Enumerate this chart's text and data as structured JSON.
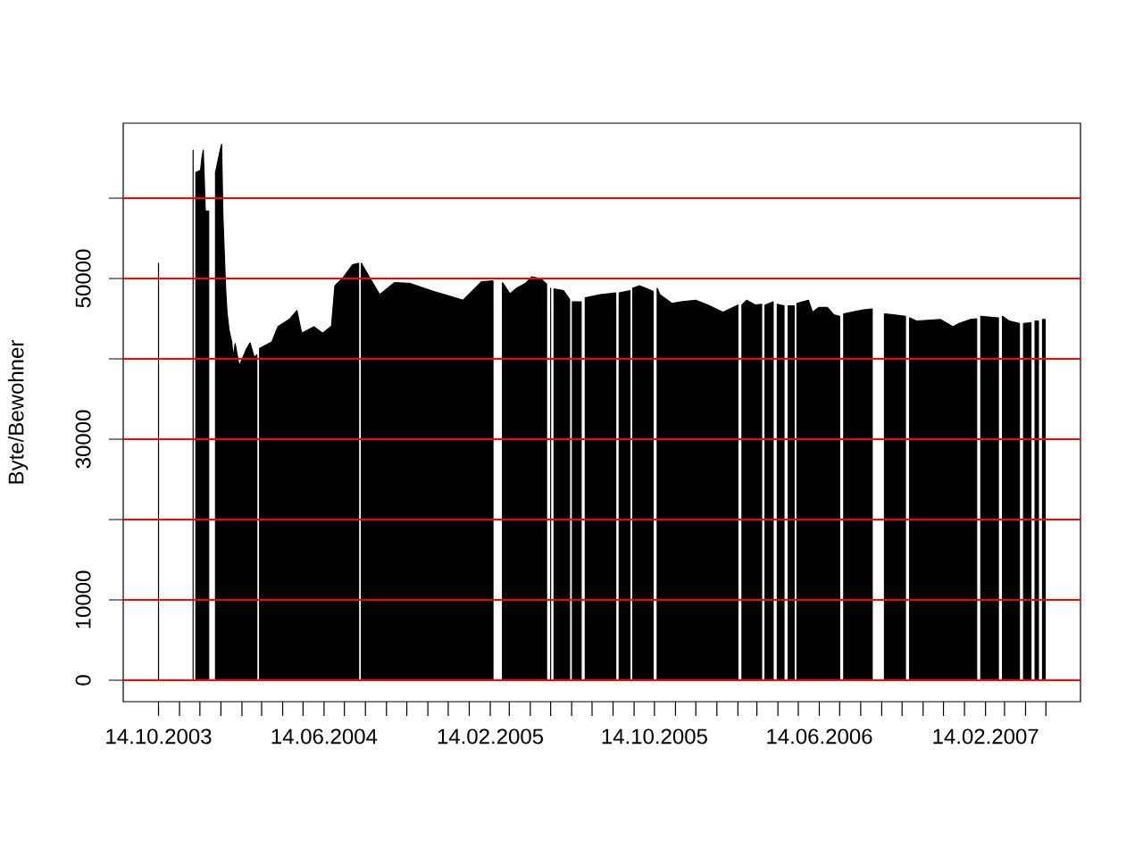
{
  "chart_data": {
    "type": "area",
    "ylabel": "Byte/Bewohner",
    "color": "#000000",
    "x": [
      "2003-10-14",
      "2003-11-08",
      "2003-12-04",
      "2003-12-06",
      "2003-12-08",
      "2003-12-15",
      "2003-12-17",
      "2003-12-19",
      "2003-12-22",
      "2003-12-27",
      "2004-01-01",
      "2004-01-06",
      "2004-01-13",
      "2004-01-15",
      "2004-01-17",
      "2004-01-21",
      "2004-01-23",
      "2004-01-26",
      "2004-01-30",
      "2004-02-01",
      "2004-02-04",
      "2004-02-10",
      "2004-02-21",
      "2004-02-26",
      "2004-03-03",
      "2004-03-07",
      "2004-03-09",
      "2004-03-11",
      "2004-03-29",
      "2004-04-07",
      "2004-04-25",
      "2004-05-05",
      "2004-05-12",
      "2004-05-30",
      "2004-06-12",
      "2004-06-25",
      "2004-06-30",
      "2004-07-13",
      "2004-07-26",
      "2004-08-04",
      "2004-08-06",
      "2004-08-08",
      "2004-08-21",
      "2004-09-04",
      "2004-09-26",
      "2004-10-18",
      "2004-11-22",
      "2005-01-05",
      "2005-02-01",
      "2005-02-18",
      "2005-02-25",
      "2005-03-04",
      "2005-03-15",
      "2005-03-25",
      "2005-04-07",
      "2005-04-16",
      "2005-04-29",
      "2005-05-08",
      "2005-05-11",
      "2005-05-14",
      "2005-05-17",
      "2005-05-19",
      "2005-06-02",
      "2005-06-11",
      "2005-06-13",
      "2005-06-15",
      "2005-06-28",
      "2005-07-01",
      "2005-07-04",
      "2005-07-26",
      "2005-08-18",
      "2005-08-20",
      "2005-08-23",
      "2005-09-08",
      "2005-09-10",
      "2005-09-12",
      "2005-09-22",
      "2005-10-12",
      "2005-10-15",
      "2005-10-18",
      "2005-10-22",
      "2005-11-09",
      "2005-11-22",
      "2005-12-14",
      "2006-01-01",
      "2006-01-23",
      "2006-02-14",
      "2006-02-17",
      "2006-02-20",
      "2006-02-27",
      "2006-03-12",
      "2006-03-21",
      "2006-03-23",
      "2006-03-26",
      "2006-04-07",
      "2006-04-10",
      "2006-04-13",
      "2006-04-23",
      "2006-04-26",
      "2006-04-29",
      "2006-05-08",
      "2006-05-10",
      "2006-05-12",
      "2006-05-29",
      "2006-06-04",
      "2006-06-13",
      "2006-06-26",
      "2006-07-05",
      "2006-07-14",
      "2006-07-17",
      "2006-07-20",
      "2006-07-31",
      "2006-08-18",
      "2006-08-31",
      "2006-09-08",
      "2006-09-18",
      "2006-10-01",
      "2006-10-19",
      "2006-10-22",
      "2006-10-25",
      "2006-11-05",
      "2006-12-10",
      "2006-12-28",
      "2007-01-06",
      "2007-01-23",
      "2007-02-01",
      "2007-02-04",
      "2007-02-07",
      "2007-03-05",
      "2007-03-08",
      "2007-03-11",
      "2007-03-21",
      "2007-04-05",
      "2007-04-08",
      "2007-04-11",
      "2007-04-22",
      "2007-04-25",
      "2007-04-28",
      "2007-05-03",
      "2007-05-06",
      "2007-05-09",
      "2007-05-13"
    ],
    "values": [
      51900,
      null,
      66000,
      null,
      63200,
      63500,
      65000,
      66000,
      58400,
      58400,
      null,
      63200,
      66000,
      66700,
      57600,
      48700,
      45800,
      43600,
      42100,
      40200,
      41900,
      39100,
      41300,
      42000,
      40200,
      40500,
      null,
      41300,
      42100,
      44000,
      45000,
      46000,
      43200,
      44000,
      43200,
      44100,
      49100,
      50200,
      51700,
      51900,
      null,
      51900,
      50000,
      48000,
      49500,
      49400,
      48400,
      47300,
      49600,
      49700,
      null,
      49500,
      48100,
      48800,
      49400,
      50200,
      50000,
      49300,
      null,
      48800,
      null,
      48700,
      48500,
      47400,
      null,
      47100,
      47100,
      null,
      47600,
      48000,
      48200,
      null,
      48200,
      48500,
      null,
      48800,
      49100,
      48400,
      null,
      48800,
      48000,
      46900,
      47100,
      47300,
      46700,
      45800,
      46700,
      null,
      46700,
      47300,
      46700,
      46800,
      null,
      46700,
      47100,
      null,
      46800,
      46600,
      null,
      46600,
      46600,
      null,
      46900,
      47300,
      45800,
      46400,
      46400,
      45500,
      45300,
      null,
      45600,
      45800,
      46100,
      46200,
      null,
      45600,
      45500,
      45300,
      null,
      45100,
      44700,
      44900,
      44000,
      44400,
      44900,
      45000,
      null,
      45300,
      45100,
      null,
      45300,
      44700,
      44400,
      null,
      44400,
      44500,
      null,
      44700,
      44700,
      null,
      44900,
      44900
    ],
    "xlim": [
      "2003-08-23",
      "2007-07-04"
    ],
    "ylim": [
      -2667,
      69333
    ],
    "xticks": [
      {
        "value": "2003-10-14",
        "label": "14.10.2003"
      },
      {
        "value": "2003-11-14",
        "label": null
      },
      {
        "value": "2003-12-14",
        "label": null
      },
      {
        "value": "2004-01-14",
        "label": null
      },
      {
        "value": "2004-02-14",
        "label": null
      },
      {
        "value": "2004-03-14",
        "label": null
      },
      {
        "value": "2004-04-14",
        "label": null
      },
      {
        "value": "2004-05-14",
        "label": null
      },
      {
        "value": "2004-06-14",
        "label": "14.06.2004"
      },
      {
        "value": "2004-07-14",
        "label": null
      },
      {
        "value": "2004-08-14",
        "label": null
      },
      {
        "value": "2004-09-14",
        "label": null
      },
      {
        "value": "2004-10-14",
        "label": null
      },
      {
        "value": "2004-11-14",
        "label": null
      },
      {
        "value": "2004-12-14",
        "label": null
      },
      {
        "value": "2005-01-14",
        "label": null
      },
      {
        "value": "2005-02-14",
        "label": "14.02.2005"
      },
      {
        "value": "2005-03-14",
        "label": null
      },
      {
        "value": "2005-04-14",
        "label": null
      },
      {
        "value": "2005-05-14",
        "label": null
      },
      {
        "value": "2005-06-14",
        "label": null
      },
      {
        "value": "2005-07-14",
        "label": null
      },
      {
        "value": "2005-08-14",
        "label": null
      },
      {
        "value": "2005-09-14",
        "label": null
      },
      {
        "value": "2005-10-14",
        "label": "14.10.2005"
      },
      {
        "value": "2005-11-14",
        "label": null
      },
      {
        "value": "2005-12-14",
        "label": null
      },
      {
        "value": "2006-01-14",
        "label": null
      },
      {
        "value": "2006-02-14",
        "label": null
      },
      {
        "value": "2006-03-14",
        "label": null
      },
      {
        "value": "2006-04-14",
        "label": null
      },
      {
        "value": "2006-05-14",
        "label": null
      },
      {
        "value": "2006-06-14",
        "label": "14.06.2006"
      },
      {
        "value": "2006-07-14",
        "label": null
      },
      {
        "value": "2006-08-14",
        "label": null
      },
      {
        "value": "2006-09-14",
        "label": null
      },
      {
        "value": "2006-10-14",
        "label": null
      },
      {
        "value": "2006-11-14",
        "label": null
      },
      {
        "value": "2006-12-14",
        "label": null
      },
      {
        "value": "2007-01-14",
        "label": null
      },
      {
        "value": "2007-02-14",
        "label": "14.02.2007"
      },
      {
        "value": "2007-03-14",
        "label": null
      },
      {
        "value": "2007-04-14",
        "label": null
      },
      {
        "value": "2007-05-14",
        "label": null
      }
    ],
    "yticks": [
      0,
      10000,
      {
        "value": 20000,
        "label": null
      },
      30000,
      {
        "value": 40000,
        "label": null
      },
      50000,
      {
        "value": 60000,
        "label": null
      }
    ],
    "ref_lines": [
      {
        "axis": "y",
        "value": 0,
        "color": "#ff0000"
      },
      {
        "axis": "y",
        "value": 10000,
        "color": "#ff0000"
      },
      {
        "axis": "y",
        "value": 20000,
        "color": "#ff0000"
      },
      {
        "axis": "y",
        "value": 30000,
        "color": "#ff0000"
      },
      {
        "axis": "y",
        "value": 40000,
        "color": "#ff0000"
      },
      {
        "axis": "y",
        "value": 50000,
        "color": "#ff0000"
      },
      {
        "axis": "y",
        "value": 60000,
        "color": "#ff0000"
      }
    ]
  }
}
